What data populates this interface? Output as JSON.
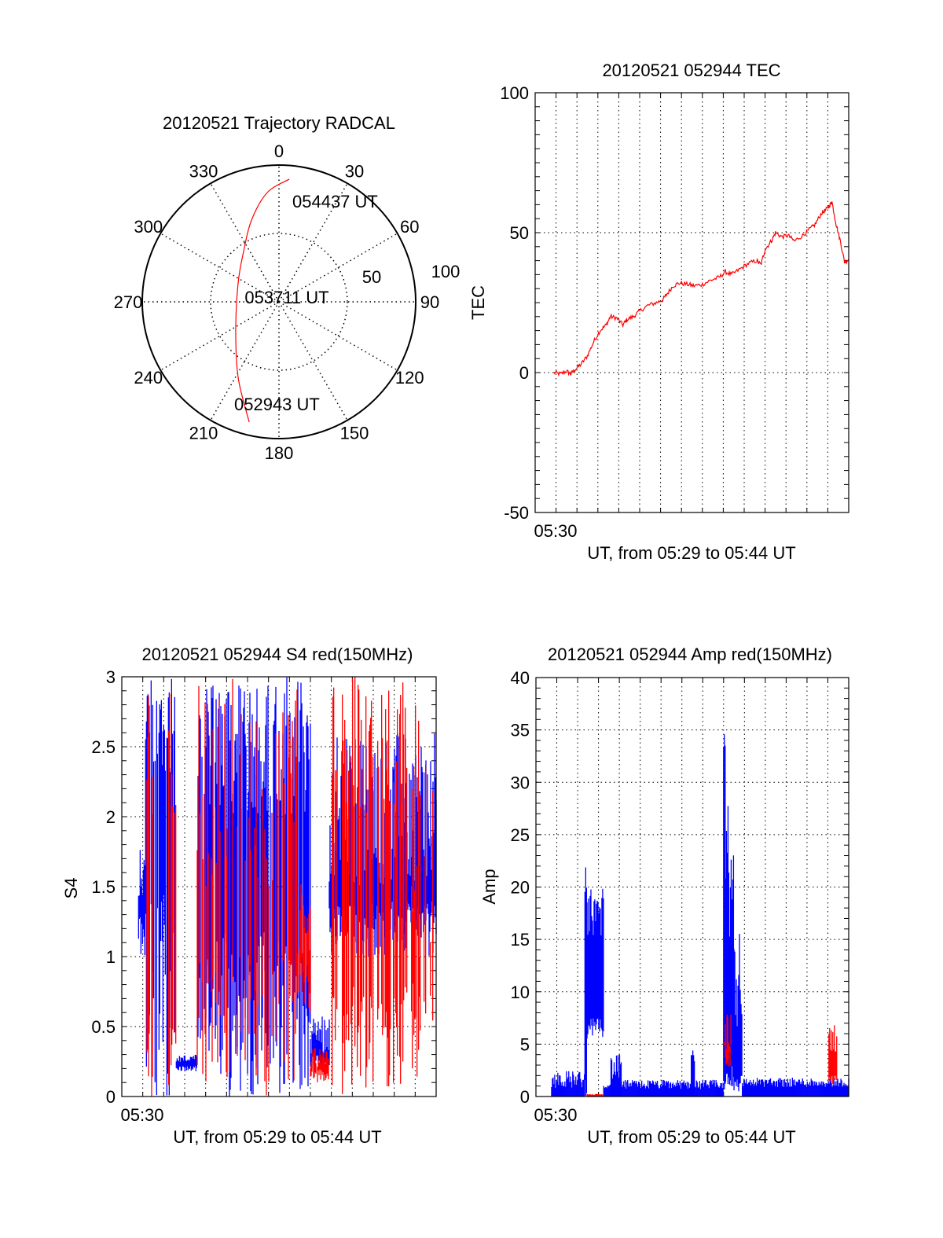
{
  "colors": {
    "red": "#ff0000",
    "blue": "#0000ff",
    "axis": "#000000"
  },
  "chart_data": [
    {
      "id": "polar",
      "type": "polar",
      "title": "20120521 Trajectory RADCAL",
      "angle_labels": [
        "0",
        "30",
        "60",
        "90",
        "120",
        "150",
        "180",
        "210",
        "240",
        "270",
        "300",
        "330"
      ],
      "radius_labels": [
        "50",
        "100"
      ],
      "rmax": 100,
      "trajectory_az_r": [
        [
          193.9,
          90.6
        ],
        [
          208.4,
          62.8
        ],
        [
          236.8,
          37.8
        ],
        [
          294.8,
          32.9
        ],
        [
          324.9,
          45
        ],
        [
          341.4,
          63
        ],
        [
          353.8,
          80.3
        ],
        [
          4.8,
          90
        ]
      ],
      "annotations": {
        "start": "052943 UT",
        "mid": "053711 UT",
        "end": "054437 UT"
      }
    },
    {
      "id": "tec",
      "type": "line",
      "title": "20120521 052944 TEC",
      "xlabel": "UT, from 05:29 to 05:44 UT",
      "ylabel": "TEC",
      "xtick_label": "05:30",
      "xlim_minutes_after_0529": [
        0,
        15
      ],
      "ylim": [
        -50,
        100
      ],
      "yticks": [
        "-50",
        "0",
        "50",
        "100"
      ],
      "series": [
        {
          "name": "TEC",
          "color": "red",
          "points": [
            [
              0.9,
              0
            ],
            [
              1.2,
              -0.5
            ],
            [
              1.5,
              0.5
            ],
            [
              1.7,
              -0.5
            ],
            [
              1.9,
              1
            ],
            [
              2.2,
              3
            ],
            [
              2.5,
              6
            ],
            [
              2.8,
              11
            ],
            [
              3.1,
              15
            ],
            [
              3.4,
              17
            ],
            [
              3.6,
              20
            ],
            [
              3.9,
              19.5
            ],
            [
              4.2,
              17
            ],
            [
              4.4,
              19
            ],
            [
              4.7,
              20
            ],
            [
              5.0,
              22
            ],
            [
              5.4,
              24
            ],
            [
              5.8,
              25
            ],
            [
              6.1,
              26
            ],
            [
              6.3,
              28
            ],
            [
              6.6,
              31
            ],
            [
              6.9,
              32
            ],
            [
              7.3,
              31.5
            ],
            [
              7.6,
              31
            ],
            [
              8.0,
              31.5
            ],
            [
              8.4,
              33
            ],
            [
              8.8,
              34
            ],
            [
              9.1,
              36
            ],
            [
              9.4,
              35
            ],
            [
              9.8,
              37
            ],
            [
              10.2,
              39
            ],
            [
              10.6,
              40
            ],
            [
              10.8,
              38.5
            ],
            [
              11.0,
              44
            ],
            [
              11.3,
              47
            ],
            [
              11.5,
              50
            ],
            [
              11.8,
              48.5
            ],
            [
              12.1,
              49
            ],
            [
              12.4,
              47
            ],
            [
              12.8,
              49
            ],
            [
              13.1,
              51
            ],
            [
              13.4,
              53
            ],
            [
              13.7,
              57
            ],
            [
              13.9,
              58
            ],
            [
              14.1,
              60
            ],
            [
              14.2,
              61
            ],
            [
              14.4,
              53
            ],
            [
              14.6,
              47
            ],
            [
              14.8,
              39.5
            ],
            [
              15.0,
              40.5
            ]
          ]
        }
      ]
    },
    {
      "id": "s4",
      "type": "line",
      "title": "20120521 052944 S4 red(150MHz)",
      "xlabel": "UT, from 05:29 to 05:44 UT",
      "ylabel": "S4",
      "xtick_label": "05:30",
      "xlim_minutes_after_0529": [
        0,
        15
      ],
      "ylim": [
        0,
        3
      ],
      "yticks": [
        "0",
        "0.5",
        "1",
        "1.5",
        "2",
        "2.5",
        "3"
      ],
      "note": "noisy series summarised as envelope segments [t0, t1, low range, high range, density]",
      "series": [
        {
          "name": "blue",
          "color": "blue",
          "segments": [
            [
              0.8,
              1.1,
              [
                1.0,
                1.3
              ],
              [
                1.4,
                1.85
              ],
              1
            ],
            [
              1.1,
              2.6,
              [
                0,
                1.5
              ],
              [
                2.3,
                3
              ],
              0.8
            ],
            [
              2.6,
              3.6,
              [
                0.18,
                0.22
              ],
              [
                0.24,
                0.3
              ],
              1
            ],
            [
              3.6,
              9.0,
              [
                0,
                1.2
              ],
              [
                2,
                3
              ],
              0.75
            ],
            [
              9.0,
              9.9,
              [
                0.2,
                0.3
              ],
              [
                0.3,
                0.6
              ],
              1
            ],
            [
              9.9,
              15,
              [
                1.0,
                1.4
              ],
              [
                1.5,
                2.6
              ],
              1
            ]
          ]
        },
        {
          "name": "red",
          "color": "red",
          "segments": [
            [
              1.2,
              1.5,
              [
                0,
                0.5
              ],
              [
                2,
                3
              ],
              0.6
            ],
            [
              2.2,
              2.6,
              [
                0,
                0.6
              ],
              [
                1.5,
                3
              ],
              0.4
            ],
            [
              3.6,
              8.4,
              [
                0,
                1
              ],
              [
                1.5,
                3
              ],
              0.35
            ],
            [
              8.4,
              9.0,
              [
                0.6,
                1
              ],
              [
                1,
                1.6
              ],
              0.8
            ],
            [
              9.0,
              9.9,
              [
                0.1,
                0.2
              ],
              [
                0.2,
                0.35
              ],
              0.9
            ],
            [
              10.0,
              13.6,
              [
                0,
                0.8
              ],
              [
                2,
                3
              ],
              0.5
            ],
            [
              13.6,
              15,
              [
                0.1,
                1
              ],
              [
                1,
                2.8
              ],
              0.5
            ]
          ]
        }
      ]
    },
    {
      "id": "amp",
      "type": "line",
      "title": "20120521 052944 Amp red(150MHz)",
      "xlabel": "UT, from 05:29 to 05:44 UT",
      "ylabel": "Amp",
      "xtick_label": "05:30",
      "xlim_minutes_after_0529": [
        0,
        15
      ],
      "ylim": [
        0,
        40
      ],
      "yticks": [
        "0",
        "5",
        "10",
        "15",
        "20",
        "25",
        "30",
        "35",
        "40"
      ],
      "series": [
        {
          "name": "blue",
          "color": "blue",
          "segments": [
            [
              0.75,
              2.35,
              [
                0,
                0
              ],
              [
                0.8,
                2.5
              ],
              1
            ],
            [
              2.35,
              2.45,
              [
                0,
                2
              ],
              [
                12,
                22
              ],
              1
            ],
            [
              2.45,
              3.25,
              [
                5.5,
                7.5
              ],
              [
                15,
                20
              ],
              1
            ],
            [
              3.25,
              3.6,
              [
                0,
                0
              ],
              [
                0.8,
                1.5
              ],
              1
            ],
            [
              3.6,
              4.1,
              [
                0,
                0
              ],
              [
                1.5,
                4
              ],
              1
            ],
            [
              4.1,
              9.0,
              [
                0,
                0
              ],
              [
                0.7,
                1.6
              ],
              1
            ],
            [
              7.45,
              7.6,
              [
                0,
                0
              ],
              [
                3,
                4.5
              ],
              1
            ],
            [
              9.0,
              9.1,
              [
                0,
                2
              ],
              [
                30,
                38.5
              ],
              1
            ],
            [
              9.1,
              9.5,
              [
                1,
                3
              ],
              [
                15,
                28
              ],
              1
            ],
            [
              9.5,
              9.9,
              [
                0.5,
                2
              ],
              [
                6,
                17
              ],
              1
            ],
            [
              9.9,
              15,
              [
                0,
                0
              ],
              [
                0.9,
                1.8
              ],
              1
            ]
          ]
        },
        {
          "name": "red",
          "color": "red",
          "segments": [
            [
              2.45,
              3.25,
              [
                0,
                0
              ],
              [
                0.15,
                0.25
              ],
              1
            ],
            [
              9.05,
              9.35,
              [
                1.5,
                5
              ],
              [
                4,
                8
              ],
              1
            ],
            [
              14.05,
              14.45,
              [
                1,
                2
              ],
              [
                4,
                7
              ],
              1
            ]
          ]
        }
      ]
    }
  ]
}
